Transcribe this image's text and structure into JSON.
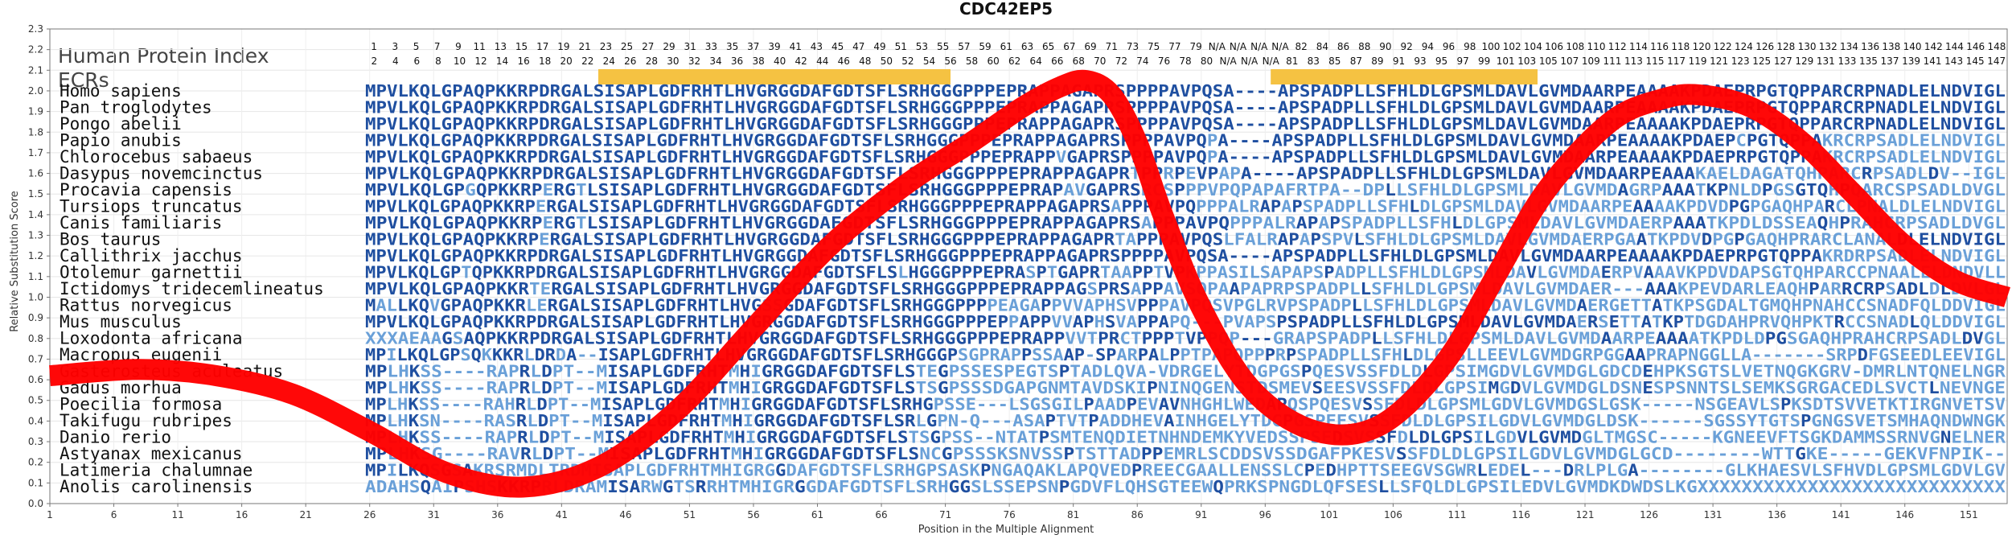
{
  "chart_data": {
    "type": "line",
    "title": "CDC42EP5",
    "xlabel": "Position in the Multiple Alignment",
    "ylabel": "Relative Substitution Score",
    "ylim": [
      0.0,
      2.3
    ],
    "xlim": [
      1,
      154
    ],
    "y_ticks": [
      "0.0",
      "0.1",
      "0.2",
      "0.3",
      "0.4",
      "0.5",
      "0.6",
      "0.7",
      "0.8",
      "0.9",
      "1.0",
      "1.1",
      "1.2",
      "1.3",
      "1.4",
      "1.5",
      "1.6",
      "1.7",
      "1.8",
      "1.9",
      "2.0",
      "2.1",
      "2.2",
      "2.3"
    ],
    "x_ticks": [
      1,
      6,
      11,
      16,
      21,
      26,
      31,
      36,
      41,
      46,
      51,
      56,
      61,
      66,
      71,
      76,
      81,
      86,
      91,
      96,
      101,
      106,
      111,
      116,
      121,
      126,
      131,
      136,
      141,
      146,
      151
    ],
    "heading_1": "Human Protein Index",
    "heading_2": "ECRs",
    "ecr_regions": [
      {
        "start": 23,
        "end": 55,
        "color": "#f5c242"
      },
      {
        "start": 86,
        "end": 110,
        "color": "#f5c242"
      }
    ],
    "index_row_1": [
      "1",
      "3",
      "5",
      "7",
      "9",
      "11",
      "13",
      "15",
      "17",
      "19",
      "21",
      "23",
      "25",
      "27",
      "29",
      "31",
      "33",
      "35",
      "37",
      "39",
      "41",
      "43",
      "45",
      "47",
      "49",
      "51",
      "53",
      "55",
      "57",
      "59",
      "61",
      "63",
      "65",
      "67",
      "69",
      "71",
      "73",
      "75",
      "77",
      "79",
      "N/A",
      "N/A",
      "N/A",
      "N/A",
      "82",
      "84",
      "86",
      "88",
      "90",
      "92",
      "94",
      "96",
      "98",
      "100",
      "102",
      "104",
      "106",
      "108",
      "110",
      "112",
      "114",
      "116",
      "118",
      "120",
      "122",
      "124",
      "126",
      "128",
      "130",
      "132",
      "134",
      "136",
      "138",
      "140",
      "142",
      "144",
      "146",
      "148"
    ],
    "index_row_2": [
      "2",
      "4",
      "6",
      "8",
      "10",
      "12",
      "14",
      "16",
      "18",
      "20",
      "22",
      "24",
      "26",
      "28",
      "30",
      "32",
      "34",
      "36",
      "38",
      "40",
      "42",
      "44",
      "46",
      "48",
      "50",
      "52",
      "54",
      "56",
      "58",
      "60",
      "62",
      "64",
      "66",
      "68",
      "70",
      "72",
      "74",
      "76",
      "78",
      "80",
      "N/A",
      "N/A",
      "N/A",
      "81",
      "83",
      "85",
      "87",
      "89",
      "91",
      "93",
      "95",
      "97",
      "99",
      "101",
      "103",
      "105",
      "107",
      "109",
      "111",
      "113",
      "115",
      "117",
      "119",
      "121",
      "123",
      "125",
      "127",
      "129",
      "131",
      "133",
      "135",
      "137",
      "139",
      "141",
      "143",
      "145",
      "147"
    ],
    "species": [
      "Homo sapiens",
      "Pan troglodytes",
      "Pongo abelii",
      "Papio anubis",
      "Chlorocebus sabaeus",
      "Dasypus novemcinctus",
      "Procavia capensis",
      "Tursiops truncatus",
      "Canis familiaris",
      "Bos taurus",
      "Callithrix jacchus",
      "Otolemur garnettii",
      "Ictidomys tridecemlineatus",
      "Rattus norvegicus",
      "Mus musculus",
      "Loxodonta africana",
      "Macropus eugenii",
      "Gasterosteus aculeatus",
      "Gadus morhua",
      "Poecilia formosa",
      "Takifugu rubripes",
      "Danio rerio",
      "Astyanax mexicanus",
      "Latimeria chalumnae",
      "Anolis carolinensis"
    ],
    "sequences": [
      "MPVLKQLGPAQPKKRPDRGALSISAPLGDFRHTLHVGRGGDAFGDTSFLSRHGGGPPPEPRAPPAGAPRSPPPPAVPQSA----APSPADPLLSFHLDLGPSMLDAVLGVMDAARPEAAAAKPDAEPRPGTQPPARCRPNADLELNDVIGL",
      "MPVLKQLGPAQPKKRPDRGALSISAPLGDFRHTLHVGRGGDAFGDTSFLSRHGGGPPPEPRAPPAGAPRSPPPPAVPQSA----APSPADPLLSFHLDLGPSMLDAVLGVMDAARPEAAAAKPDAEPRPGTQPPARCRPNADLELNDVIGL",
      "MPVLKQLGPAQPKKRPDRGALSISAPLGDFRHTLHVGRGGDAFGDTSFLSRHGGGPPPEPRAPPAGAPRSPPPPAVPQSA----APSPADPLLSFHLDLGPSMLDAVLGVMDAARPEAAAAKPDAEPRPGTQPPARCRPNADLELNDVIGL",
      "MPVLKQLGPAQPKKRPDRGALSISAPLGDFRHTLHVGRGGDAFGDTSFLSRHGGGPPPEPRAPPAGAPRSPPPPAVPQPA----APSPADPLLSFHLDLGPSMLDAVLGVMDAARPEAAAAKPDAEPCPGTQPPAKRCRPSADLELNDVIGL",
      "MPVLKQLGPAQPKKRPDRGALSISAPLGDFRHTLHVGRGGDAFGDTSFLSRHGGGPPPEPRAPPVGAPRSPPPPAVPQPA----APSPADPLLSFHLDLGPSMLDAVLGVMDAARPEAAAAKPDAEPRPGTQPPAKRCRPSADLELNDVIGL",
      "MPVLKQLGPAQPKKRPDRGALSISAPLGDFRHTLHVGRGGDAFGDTSFLSRHGGGPPPEPRAPPAGAPRTPPRPEVPAPA----APSPADPLLSFHLDLGPSMLDAVLGVMDAARPEAAAKAELDAGATQHPARCRPSADLDV--IGL",
      "MPVLKQLGPGQPKKRPERGTLSISAPLGDFRHTLHVGRGGDAFGDTSFLSRHGGGPPPEPRAPAVGAPRSRCSPPPVPQPAPAFRTPA--DPLLSFHLDLGPSMLDAVLGVMDAGRPAAATKPNLDPGSGTQHPQARCSPSADLDVGL",
      "MPVLKQLGPAQPKKRPERGALSISAPLGDFRHTLHVGRGGDAFGDTSFLSRHGGGPPPEPRAPPAGAPRSAPPPAVPQPPPALRAPAPSPADPLLSFHLDLGPSMLDAVLGVMDAARPEAAAAKPDVDPGPGAQHPARCLPNALDLELNDVIGL",
      "MPVLKQLGPAQPKKRPERGTLSISAPLGDFRHTLHVGRGGDAFGDTSFLSRHGGGPPPEPRAPPAGAPRSAPPPAVPQPPPALRAPAPSPADPLLSFHLDLGPSMLDAVLGVMDAERPAAATKPDLDSSEAQHPRAHCRPSADLDVGL",
      "MPVLKQLGPAQPKKRPERGALSISAPLGDFRHTLHVGRGGDAFGDTSFLSRHGGGPPPEPRAPPAGAPRTAPPPAVPQSLFALRAPAPSPVLSFHLDLGPSMLDAVLGVMDAERPGAATKPDVDPGPGAQHPRARCLANALDLELNDVIGL",
      "MPVLKQLGPAQPKKRPDRGALSISAPLGDFRHTLHVGRGGDAFGDTSFLSRHGGGPPPEPRAPPAGAPRSPPPPAVPQSA----APSPADPLLSFHLDLGPSMLDAVLGVMDAARPEAAAAKPDAEPRPGTQPPAKRDRPSADLELNDVIGL",
      "MPVLKQLGPTQPKKRPDRGALSISAPLGDFRHTLHVGRGGDAFGDTSFLSLHGGGPPPEPRASPTGAPRTAAPPTVPKPPASILSAPAPSPADPLLSFHLDLGPSMLDAVLGVMDAERPVAAAVKPDVDAPSGTQHPARCCPNAALELDNDVLL",
      "MPVLKQLGPAQPKKRTERGALSISAPLGDFRHTLHVGRGGDAFGDTSFLSRHGGGPPPEPRAPPAGSPRSAPPAVSQPAAPAPRPSPADPLLSFHLDLGPSMLDAVLGVMDAER---AAAKPEVDARLEAQHPARRCRPSADLDLDVLGL",
      "MALLKQVGPAQPKKRLERGALSISAPLGDFRHTLHVGSSGDAFGDTSFLSRHGGGPPPPEAGAPPVVAPHSVPPPAVPQSVPGLRVPSPADPLLSFHLDLGPSMLDAVLGVMDAERGETTATKPSGDALTGMQHPNAHCCSNADFQLDDVIGL",
      "MPVLKQLGPAQPKKRPDRGALSISAPLGDFRHTLHVGRGGDAFGDTSFLSRHGGGPPPEPPAPPVVAPHSVAPPAPQ---PVAPSPSPADPLLSFHLDLGPSMLDAVLGVMDAERSETTATKPTDGDAHPRVQHPKTRCCSNADLQLDDVIGL",
      "XXXAEAAGSAQPKKRPDRGALSISAPLGDFRHTLHVGRGGDAFGDTSFLSRHGGGPPPEPRAPPVVTPRCTPPPTVPPQP---GRAPSPADPLLSFHLDLGPSMLDAVLGVMDAARPEAAAATKPDLDPGSGAQHPRAHCRPSADLDVGL",
      "MPILKQLGPSQKKKRLDRDA--ISAPLGDFRHTLHVGRGGDAFGDTSFLSRHGGGPSGPRAPPSSAAP-SPARPALPPTPAPQPPPRPSPADPLLSFHLDLGPSLLEEVLGVMDGRPGGAAPRAPNGGLLA-------SRPDFGSEEDLEEVIGL",
      "MPLHKSS----RAPRLDPT--MISAPLGDFRHTMHIGRGGDAFGDTSFLSTEGPSSESPEGTSPTADLQVA-VDRGELYTDGPGSPQESVSSFDLDLGPSIMGDVLGVMDGLGDCDEHPKSGTSLVETNQGKGRV-DMRLNTQNELNGR",
      "MPLHKSS----RAPRLDPT--MISAPLGDFRHTMHIGRGGDAFGDTSFLSTSGPSSSDGAPGNMTAVDSKIPNINQGENSTDSMEVSEESVSSFDLDLGPSIMGDVLGVMDGLDSNESPSNNTSLSEMKSGRGACEDLSVCTLNEVNGE",
      "MPLHKSS----RAHRLDPT--MISAPLGDFRHTMHIGRGGDAFGDTSFLSRHGPSSE---LSGSGILPAADPEVAVNHGHLWEDAPQSPQESVSSFDLDLGPSMLGDVLGVMDGSLGSK-----NSGEAVLSPKSDTSVVETKTIRGNVETSV",
      "MPLHKSN----RASRLDPT--MISAPLGDFRHTMHIGRGGDAFGDTSFLSRLGPN-Q---ASAPTVTPADDHEVAINHGELYTDGPGSPEESVSSFDLDLGPSILGDVLGVMDGLDSK------SGSSYTGTSPGNGSVETSMHAQNDWNGK",
      "MPLHKSS----RAPRLDPT--MISAPLGDFRHTMHIGRGGDAFGDTSFLSTSGPSS--NTATPSMTENQDIETNHNDEMKYVEDSSPSEDSVSSFDLDLGPSILGDVLGVMDGLTMGSC-----KGNEEVFTSGKDAMMSSRNVGNELNER",
      "MPLHKSG----RAVRLDPT--MISAPLGDFRHTMHIGRGGDAFGDTSFLSNCGPSSSKSNVSSPTSTTADPPEMRLSCDDSVSSDGAFPKESVSSFDLDLGPSILGDVLGVMDGLGCD--------WTTGKE-----GEKVFNPIK--",
      "MPILKQSGSAKRSRMDLTRDMISAPLGDFRHTMHIGRGGDAFGDTSFLSRHGPSASKPNGAQAKLAPQVEDPREECGAALLENSSLCPEDHPTTSEEGVSGWRLEDEL---DRLPLGA--------GLKHAESVLSFHVDLGPSMLGDVLGV",
      "ADAHSQAIPSHSKKRPRLDRAMISARWGTSRRHTMHIGRGGDAFGDTSFLSRHGGSLSSEPSNPGDVFLQHSGTEEWQPRKSPNGDLQFSESLLSFQLDLGPSILEDVLGVMDKDWDSLKGXXXXXXXXXXXXXXXXXXXXXXXXXXXX"
    ],
    "series": [
      {
        "x": [
          1,
          8,
          14,
          20,
          26,
          32,
          38,
          44,
          50,
          56,
          62,
          68,
          73,
          77,
          80,
          82,
          84,
          86,
          88,
          91,
          95,
          100,
          105,
          110,
          114,
          118,
          123,
          127,
          130,
          134,
          138,
          142,
          146,
          150,
          154
        ],
        "y": [
          0.62,
          0.65,
          0.62,
          0.53,
          0.35,
          0.15,
          0.08,
          0.18,
          0.45,
          0.85,
          1.25,
          1.55,
          1.75,
          1.92,
          2.02,
          2.05,
          1.98,
          1.75,
          1.4,
          0.95,
          0.55,
          0.35,
          0.38,
          0.68,
          1.1,
          1.52,
          1.85,
          1.96,
          1.98,
          1.92,
          1.75,
          1.5,
          1.25,
          1.08,
          1.0
        ]
      }
    ],
    "grid": true,
    "colors": {
      "curve": "#ff0000",
      "ecr": "#f5c242",
      "conserved": "#1f4fa0",
      "variable": "#6aa0d8",
      "index_text": "#111111",
      "axis": "#777777"
    }
  }
}
